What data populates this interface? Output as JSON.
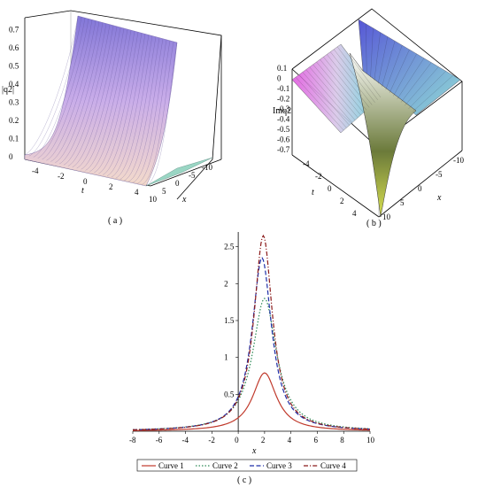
{
  "panel_a": {
    "caption": "( a )",
    "zlabel": "|q2|",
    "tlabel": "t",
    "xlabel": "x",
    "zticks": [
      "0",
      "0.1",
      "0.2",
      "0.3",
      "0.4",
      "0.5",
      "0.6",
      "0.7"
    ],
    "tticks": [
      "-4",
      "-2",
      "0",
      "2",
      "4"
    ],
    "xticks": [
      "10",
      "5",
      "0",
      "-5",
      "-10"
    ]
  },
  "panel_b": {
    "caption": "( b )",
    "zlabel": "Imq2",
    "tlabel": "t",
    "xlabel": "x",
    "zticks": [
      "0.1",
      "0",
      "-0.1",
      "-0.2",
      "-0.3",
      "-0.4",
      "-0.5",
      "-0.6",
      "-0.7"
    ],
    "tticks": [
      "-4",
      "-2",
      "0",
      "2",
      "4"
    ],
    "xticks": [
      "10",
      "5",
      "0",
      "-5",
      "-10"
    ]
  },
  "colors": {
    "curve1": "#c0392b",
    "curve2": "#2e8b57",
    "curve3": "#1f2fa8",
    "curve4": "#8b1a1a"
  },
  "chart_data": [
    {
      "type": "surface",
      "panel": "a",
      "description_axes": [
        "t",
        "x",
        "|q2|"
      ],
      "t_range": [
        -5,
        5
      ],
      "x_range": [
        -10,
        10
      ],
      "z_range": [
        0,
        0.75
      ]
    },
    {
      "type": "surface",
      "panel": "b",
      "description_axes": [
        "t",
        "x",
        "Imq2"
      ],
      "t_range": [
        -5,
        5
      ],
      "x_range": [
        -10,
        10
      ],
      "z_range": [
        -0.75,
        0.12
      ]
    },
    {
      "type": "line",
      "panel": "c",
      "caption": "( c )",
      "xlabel": "x",
      "ylabel": "",
      "xlim": [
        -8,
        10
      ],
      "ylim": [
        0,
        2.7
      ],
      "xticks": [
        -8,
        -6,
        -4,
        -2,
        0,
        2,
        4,
        6,
        8,
        10
      ],
      "yticks": [
        0.5,
        1,
        1.5,
        2,
        2.5
      ],
      "xtick_labels": [
        "-8",
        "-6",
        "-4",
        "-2",
        "0",
        "2",
        "4",
        "6",
        "8",
        "10"
      ],
      "ytick_labels": [
        "0.5",
        "1",
        "1.5",
        "2",
        "2.5"
      ],
      "legend_position": "bottom",
      "series": [
        {
          "name": "Curve 1",
          "style": "solid",
          "peak_x": 2,
          "peak_y": 0.79,
          "width": 1.1
        },
        {
          "name": "Curve 2",
          "style": "dotted",
          "peak_x": 2,
          "peak_y": 1.8,
          "width": 1.1
        },
        {
          "name": "Curve 3",
          "style": "dashed",
          "peak_x": 1.8,
          "peak_y": 2.35,
          "width": 0.9
        },
        {
          "name": "Curve 4",
          "style": "dashdot",
          "peak_x": 1.9,
          "peak_y": 2.65,
          "width": 0.85
        }
      ]
    }
  ]
}
